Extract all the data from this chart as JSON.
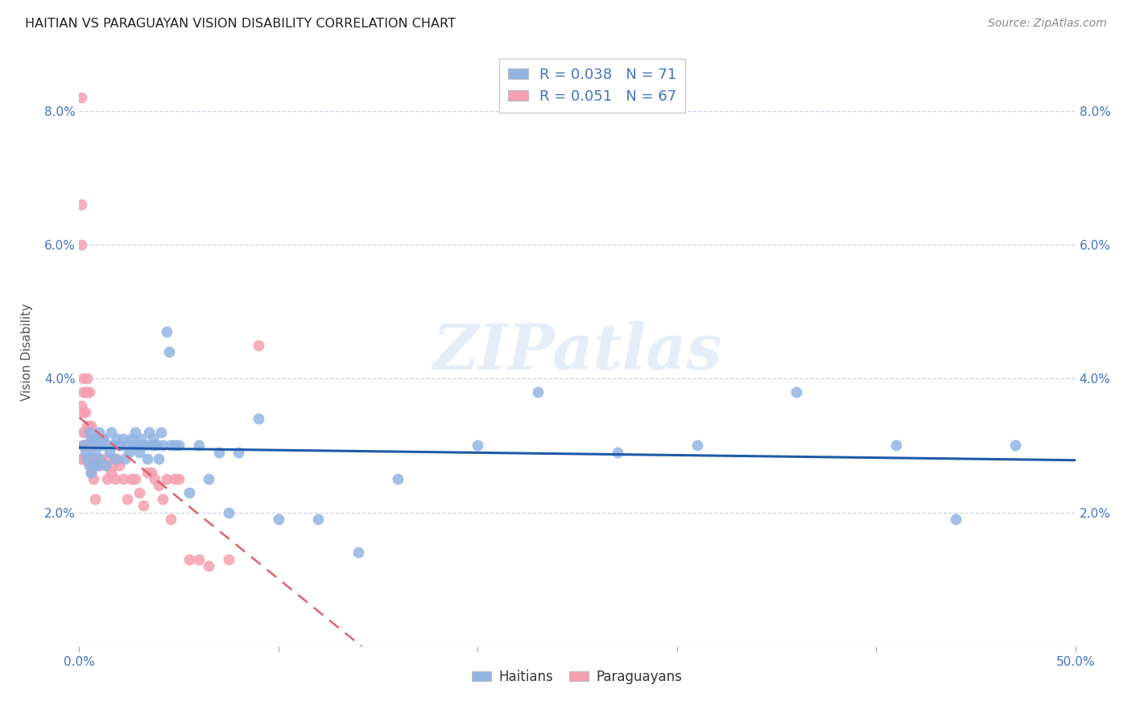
{
  "title": "HAITIAN VS PARAGUAYAN VISION DISABILITY CORRELATION CHART",
  "source": "Source: ZipAtlas.com",
  "ylabel": "Vision Disability",
  "xlabel": "",
  "xlim": [
    0.0,
    0.5
  ],
  "ylim": [
    0.0,
    0.088
  ],
  "xticks": [
    0.0,
    0.1,
    0.2,
    0.3,
    0.4,
    0.5
  ],
  "yticks": [
    0.0,
    0.02,
    0.04,
    0.06,
    0.08
  ],
  "ytick_labels_left": [
    "",
    "2.0%",
    "4.0%",
    "6.0%",
    "8.0%"
  ],
  "ytick_labels_right": [
    "",
    "2.0%",
    "4.0%",
    "6.0%",
    "8.0%"
  ],
  "xtick_labels": [
    "0.0%",
    "",
    "",
    "",
    "",
    "50.0%"
  ],
  "haitians_R": 0.038,
  "haitians_N": 71,
  "paraguayans_R": 0.051,
  "paraguayans_N": 67,
  "haitian_color": "#92b4e3",
  "paraguayan_color": "#f4a0b0",
  "haitian_line_color": "#1f5aa8",
  "paraguayan_line_color": "#e06070",
  "legend_text_color": "#4472c4",
  "background_color": "#ffffff",
  "grid_color": "#c8d4e8",
  "watermark": "ZIPatlas",
  "haitian_x": [
    0.002,
    0.003,
    0.004,
    0.005,
    0.005,
    0.006,
    0.006,
    0.007,
    0.007,
    0.008,
    0.008,
    0.009,
    0.009,
    0.01,
    0.01,
    0.011,
    0.012,
    0.013,
    0.014,
    0.015,
    0.016,
    0.017,
    0.018,
    0.019,
    0.02,
    0.021,
    0.022,
    0.023,
    0.024,
    0.025,
    0.026,
    0.027,
    0.028,
    0.029,
    0.03,
    0.031,
    0.032,
    0.033,
    0.034,
    0.035,
    0.036,
    0.037,
    0.038,
    0.039,
    0.04,
    0.041,
    0.042,
    0.044,
    0.045,
    0.046,
    0.048,
    0.05,
    0.055,
    0.06,
    0.065,
    0.07,
    0.075,
    0.08,
    0.09,
    0.1,
    0.12,
    0.14,
    0.16,
    0.2,
    0.23,
    0.27,
    0.31,
    0.36,
    0.41,
    0.44,
    0.47
  ],
  "haitian_y": [
    0.03,
    0.029,
    0.028,
    0.032,
    0.027,
    0.031,
    0.026,
    0.03,
    0.027,
    0.029,
    0.031,
    0.03,
    0.027,
    0.032,
    0.028,
    0.03,
    0.031,
    0.027,
    0.03,
    0.029,
    0.032,
    0.03,
    0.028,
    0.031,
    0.03,
    0.03,
    0.031,
    0.028,
    0.03,
    0.029,
    0.031,
    0.03,
    0.032,
    0.03,
    0.029,
    0.031,
    0.03,
    0.03,
    0.028,
    0.032,
    0.03,
    0.031,
    0.03,
    0.03,
    0.028,
    0.032,
    0.03,
    0.047,
    0.044,
    0.03,
    0.03,
    0.03,
    0.023,
    0.03,
    0.025,
    0.029,
    0.02,
    0.029,
    0.034,
    0.019,
    0.019,
    0.014,
    0.025,
    0.03,
    0.038,
    0.029,
    0.03,
    0.038,
    0.03,
    0.019,
    0.03
  ],
  "paraguayan_x": [
    0.001,
    0.001,
    0.001,
    0.001,
    0.001,
    0.002,
    0.002,
    0.002,
    0.002,
    0.002,
    0.002,
    0.003,
    0.003,
    0.003,
    0.003,
    0.003,
    0.004,
    0.004,
    0.004,
    0.004,
    0.005,
    0.005,
    0.005,
    0.005,
    0.006,
    0.006,
    0.006,
    0.007,
    0.007,
    0.007,
    0.008,
    0.008,
    0.008,
    0.009,
    0.009,
    0.01,
    0.01,
    0.011,
    0.012,
    0.013,
    0.014,
    0.015,
    0.016,
    0.017,
    0.018,
    0.019,
    0.02,
    0.022,
    0.024,
    0.026,
    0.028,
    0.03,
    0.032,
    0.034,
    0.036,
    0.038,
    0.04,
    0.042,
    0.044,
    0.046,
    0.048,
    0.05,
    0.055,
    0.06,
    0.065,
    0.075,
    0.09
  ],
  "paraguayan_y": [
    0.082,
    0.066,
    0.06,
    0.036,
    0.028,
    0.035,
    0.032,
    0.03,
    0.028,
    0.04,
    0.038,
    0.038,
    0.035,
    0.032,
    0.03,
    0.028,
    0.038,
    0.033,
    0.028,
    0.04,
    0.033,
    0.03,
    0.027,
    0.038,
    0.033,
    0.028,
    0.026,
    0.031,
    0.028,
    0.025,
    0.031,
    0.028,
    0.022,
    0.031,
    0.027,
    0.031,
    0.027,
    0.028,
    0.031,
    0.027,
    0.025,
    0.028,
    0.026,
    0.027,
    0.025,
    0.028,
    0.027,
    0.025,
    0.022,
    0.025,
    0.025,
    0.023,
    0.021,
    0.026,
    0.026,
    0.025,
    0.024,
    0.022,
    0.025,
    0.019,
    0.025,
    0.025,
    0.013,
    0.013,
    0.012,
    0.013,
    0.045
  ]
}
